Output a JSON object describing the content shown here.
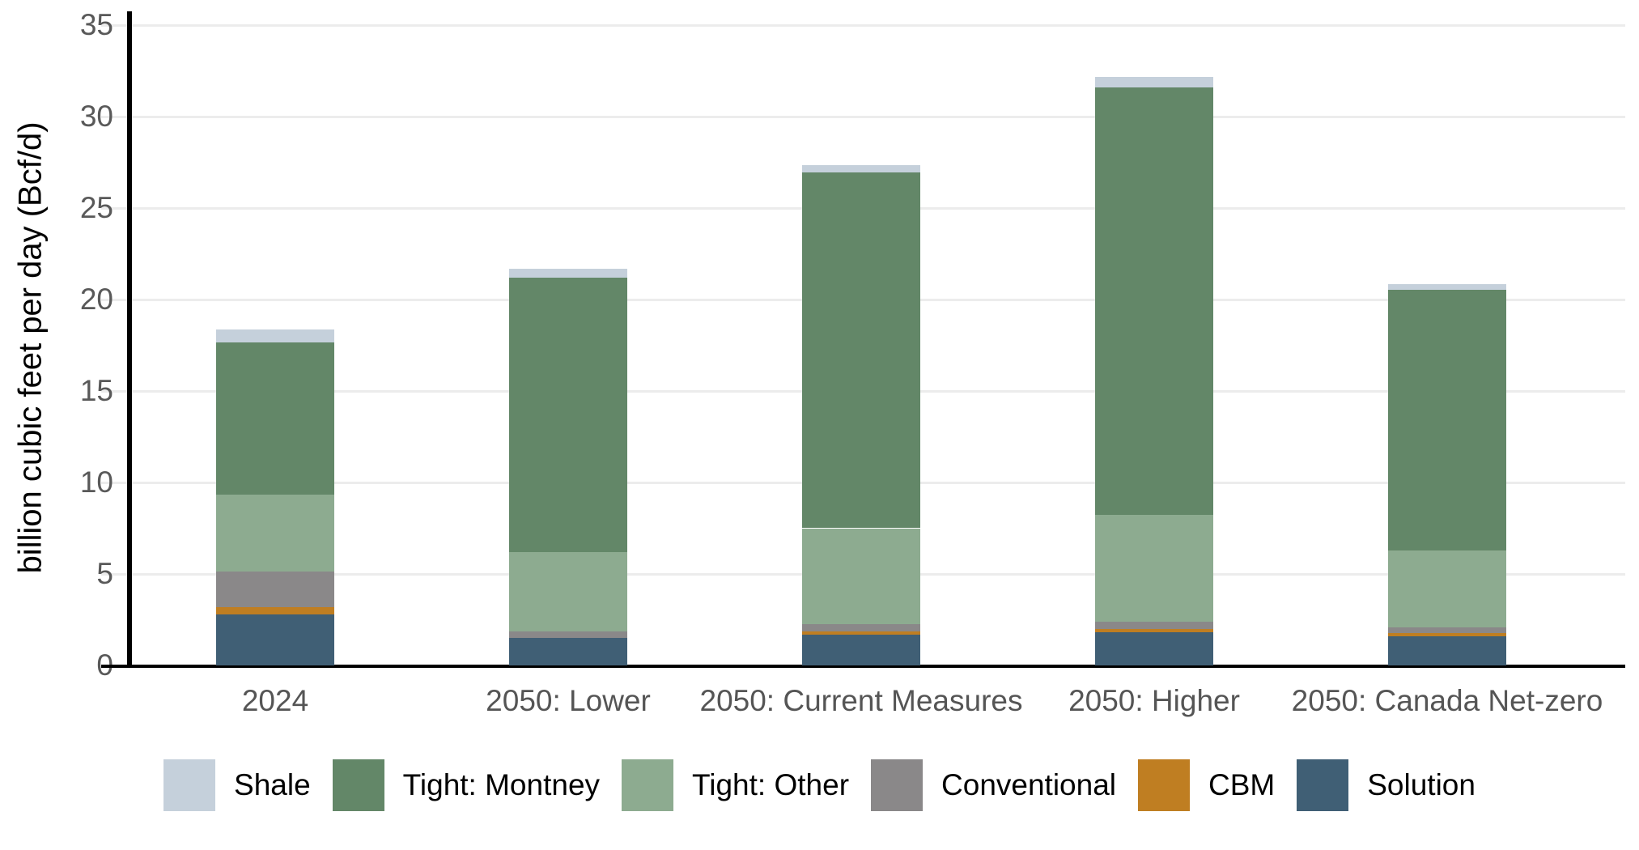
{
  "chart_data": {
    "type": "bar",
    "stacked": true,
    "ylabel": "billion cubic feet per day (Bcf/d)",
    "xlabel": "",
    "ylim": [
      0,
      35
    ],
    "yticks": [
      0,
      5,
      10,
      15,
      20,
      25,
      30,
      35
    ],
    "grid": true,
    "legend_position": "bottom",
    "categories": [
      "2024",
      "2050: Lower",
      "2050: Current Measures",
      "2050: Higher",
      "2050: Canada Net-zero"
    ],
    "series": [
      {
        "name": "Solution",
        "color": "#405f75",
        "values": [
          2.8,
          1.5,
          1.7,
          1.8,
          1.6
        ]
      },
      {
        "name": "CBM",
        "color": "#bf7e22",
        "values": [
          0.4,
          0.0,
          0.15,
          0.2,
          0.15
        ]
      },
      {
        "name": "Conventional",
        "color": "#8a8889",
        "values": [
          1.95,
          0.35,
          0.4,
          0.4,
          0.35
        ]
      },
      {
        "name": "Tight: Other",
        "color": "#8dab90",
        "values": [
          4.2,
          4.35,
          5.25,
          5.85,
          4.2
        ]
      },
      {
        "name": "Tight: Montney",
        "color": "#638768",
        "values": [
          8.3,
          15.0,
          19.45,
          23.35,
          14.25
        ]
      },
      {
        "name": "Shale",
        "color": "#c5d0db",
        "values": [
          0.7,
          0.5,
          0.4,
          0.55,
          0.3
        ]
      }
    ],
    "legend_order": [
      "Shale",
      "Tight: Montney",
      "Tight: Other",
      "Conventional",
      "CBM",
      "Solution"
    ],
    "colors": {
      "gridline": "#ececec",
      "axis": "#000000",
      "y_tick_text": "#595959",
      "x_tick_text": "#555555",
      "legend_text": "#000000"
    }
  }
}
